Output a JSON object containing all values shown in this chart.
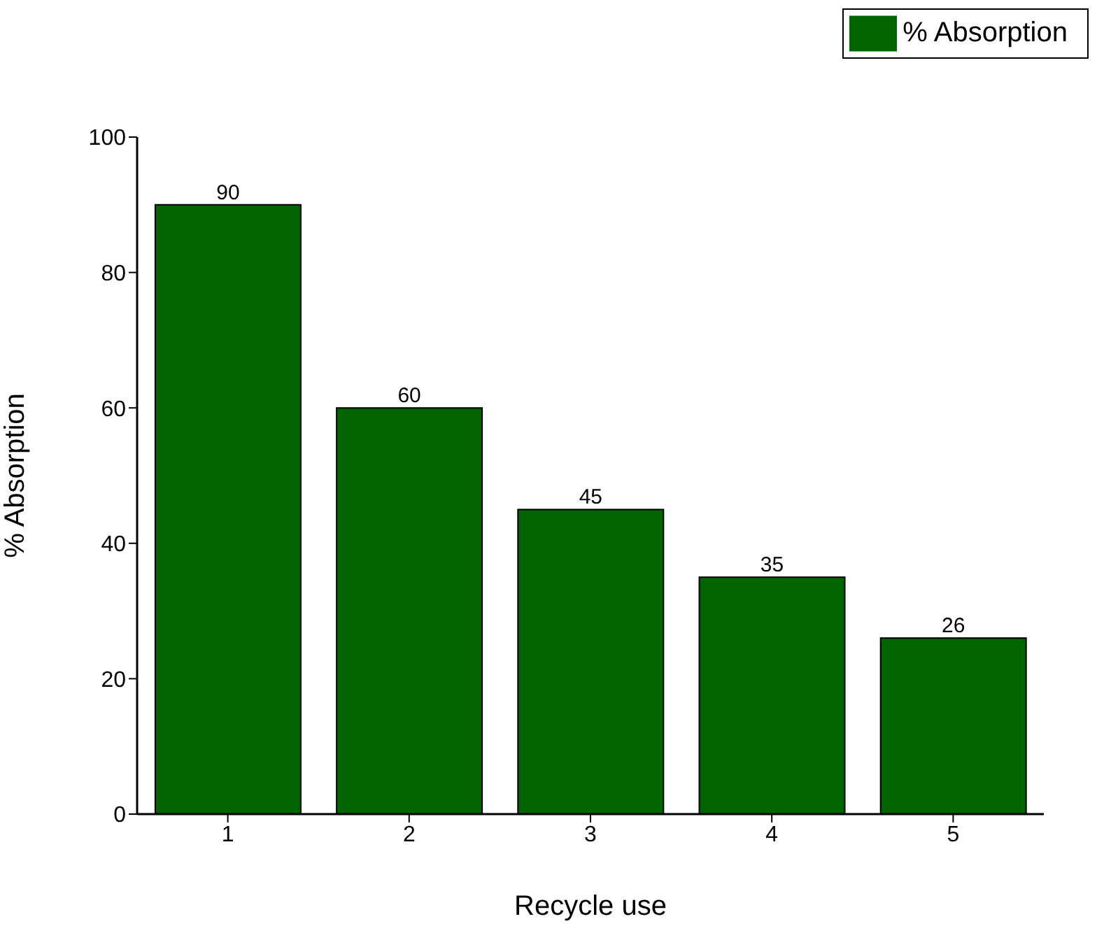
{
  "chart_data": {
    "type": "bar",
    "xlabel": "Recycle use",
    "ylabel": "% Absorption",
    "categories": [
      "1",
      "2",
      "3",
      "4",
      "5"
    ],
    "series": [
      {
        "name": "% Absorption",
        "color": "#006400",
        "values": [
          90,
          60,
          45,
          35,
          26
        ]
      }
    ],
    "ylim": [
      0,
      100
    ],
    "yticks": [
      0,
      20,
      40,
      60,
      80,
      100
    ],
    "grid": false,
    "legend": "top right",
    "data_labels": true
  }
}
